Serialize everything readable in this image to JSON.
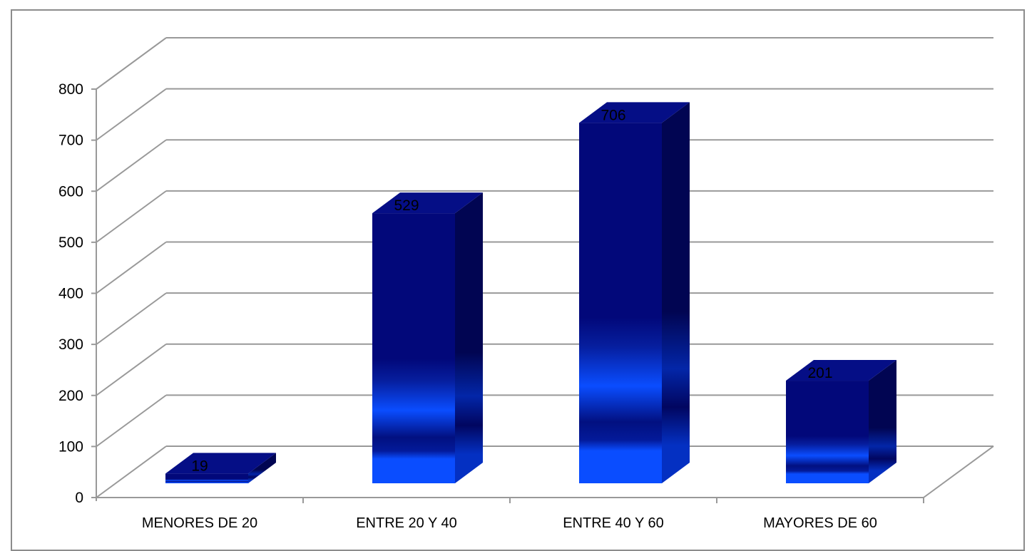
{
  "chart_data": {
    "type": "bar",
    "style": "3d-column",
    "categories": [
      "MENORES DE 20",
      "ENTRE 20 Y 40",
      "ENTRE 40 Y 60",
      "MAYORES DE 60"
    ],
    "series": [
      {
        "values": [
          19,
          529,
          706,
          201
        ]
      }
    ],
    "data_labels": [
      "19",
      "529",
      "706",
      "201"
    ],
    "ylim": [
      0,
      800
    ],
    "y_ticks": [
      "0",
      "100",
      "200",
      "300",
      "400",
      "500",
      "600",
      "700",
      "800"
    ],
    "grid": true,
    "legend": "none",
    "colors": {
      "bar_front_dark": "#02087a",
      "bar_front_bright": "#0a4dff",
      "bar_side": "#010552",
      "bar_top": "#050e86",
      "gridline": "#999999",
      "frame": "#8c8c8c"
    }
  }
}
